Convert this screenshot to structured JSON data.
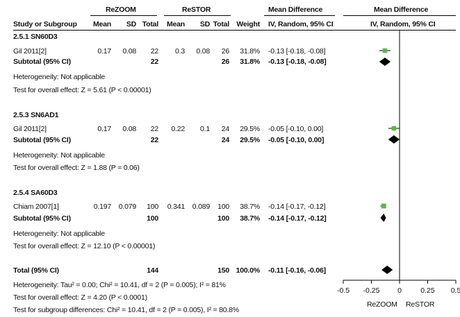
{
  "header": {
    "group1": "ReZOOM",
    "group2": "ReSTOR",
    "md_title": "Mean Difference",
    "md_title_plot": "Mean Difference",
    "col_study": "Study or Subgroup",
    "col_mean1": "Mean",
    "col_sd1": "SD",
    "col_total1": "Total",
    "col_mean2": "Mean",
    "col_sd2": "SD",
    "col_total2": "Total",
    "col_weight": "Weight",
    "col_ci": "IV, Random, 95% CI",
    "col_ci_plot": "IV, Random, 95% CI"
  },
  "subgroups": [
    {
      "title": "2.5.1 SN60D3",
      "study": {
        "name": "Gil 2011[2]",
        "mean1": "0.17",
        "sd1": "0.08",
        "total1": "22",
        "mean2": "0.3",
        "sd2": "0.08",
        "total2": "26",
        "weight": "31.8%",
        "ci": "-0.13 [-0.18, -0.08]"
      },
      "subtotal": {
        "label": "Subtotal (95% CI)",
        "total1": "22",
        "total2": "26",
        "weight": "31.8%",
        "ci": "-0.13 [-0.18, -0.08]"
      },
      "heterogeneity": "Heterogeneity: Not applicable",
      "overall": "Test for overall effect: Z = 5.61 (P < 0.00001)"
    },
    {
      "title": "2.5.3 SN6AD1",
      "study": {
        "name": "Gil 2011[2]",
        "mean1": "0.17",
        "sd1": "0.08",
        "total1": "22",
        "mean2": "0.22",
        "sd2": "0.1",
        "total2": "24",
        "weight": "29.5%",
        "ci": "-0.05 [-0.10, 0.00]"
      },
      "subtotal": {
        "label": "Subtotal (95% CI)",
        "total1": "22",
        "total2": "24",
        "weight": "29.5%",
        "ci": "-0.05 [-0.10, 0.00]"
      },
      "heterogeneity": "Heterogeneity: Not applicable",
      "overall": "Test for overall effect: Z = 1.88 (P = 0.06)"
    },
    {
      "title": "2.5.4 SA60D3",
      "study": {
        "name": "Chiam 2007[1]",
        "mean1": "0.197",
        "sd1": "0.079",
        "total1": "100",
        "mean2": "0.341",
        "sd2": "0.089",
        "total2": "100",
        "weight": "38.7%",
        "ci": "-0.14 [-0.17, -0.12]"
      },
      "subtotal": {
        "label": "Subtotal (95% CI)",
        "total1": "100",
        "total2": "100",
        "weight": "38.7%",
        "ci": "-0.14 [-0.17, -0.12]"
      },
      "heterogeneity": "Heterogeneity: Not applicable",
      "overall": "Test for overall effect: Z = 12.10 (P < 0.00001)"
    }
  ],
  "total": {
    "label": "Total (95% CI)",
    "total1": "144",
    "total2": "150",
    "weight": "100.0%",
    "ci": "-0.11 [-0.16, -0.06]"
  },
  "footer": {
    "heterogeneity": "Heterogeneity: Tau² = 0.00; Chi² = 10.41, df = 2 (P = 0.005); I² = 81%",
    "overall": "Test for overall effect: Z = 4.20 (P < 0.0001)",
    "subgroup": "Test for subgroup differences: Chi² = 10.41, df = 2 (P = 0.005), I² = 80.8%"
  },
  "axis": {
    "left_label": "ReZOOM",
    "right_label": "ReSTOR"
  },
  "colors": {
    "study_marker": "#58b845",
    "diamond": "#000000",
    "line": "#000000"
  },
  "chart_data": {
    "type": "forest",
    "xlim": [
      -0.5,
      0.5
    ],
    "ticks": [
      "-0.5",
      "-0.25",
      "0",
      "0.25",
      "0.5"
    ],
    "tick_values": [
      -0.5,
      -0.25,
      0,
      0.25,
      0.5
    ],
    "studies": [
      {
        "name": "Gil 2011[2]",
        "subgroup": "2.5.1 SN60D3",
        "estimate": -0.13,
        "lower": -0.18,
        "upper": -0.08,
        "weight": 31.8
      },
      {
        "name": "Gil 2011[2]",
        "subgroup": "2.5.3 SN6AD1",
        "estimate": -0.05,
        "lower": -0.1,
        "upper": 0.0,
        "weight": 29.5
      },
      {
        "name": "Chiam 2007[1]",
        "subgroup": "2.5.4 SA60D3",
        "estimate": -0.14,
        "lower": -0.17,
        "upper": -0.12,
        "weight": 38.7
      }
    ],
    "subtotals": [
      {
        "subgroup": "2.5.1 SN60D3",
        "estimate": -0.13,
        "lower": -0.18,
        "upper": -0.08
      },
      {
        "subgroup": "2.5.3 SN6AD1",
        "estimate": -0.05,
        "lower": -0.1,
        "upper": 0.0
      },
      {
        "subgroup": "2.5.4 SA60D3",
        "estimate": -0.14,
        "lower": -0.17,
        "upper": -0.12
      }
    ],
    "overall": {
      "estimate": -0.11,
      "lower": -0.16,
      "upper": -0.06
    }
  }
}
